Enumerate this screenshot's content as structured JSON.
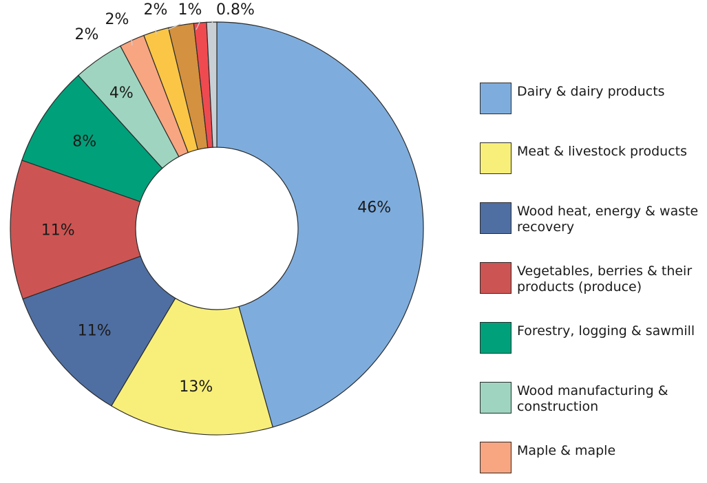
{
  "chart_data": {
    "type": "pie",
    "title": "",
    "slices": [
      {
        "name": "Dairy & dairy products",
        "value": 46,
        "label": "46%",
        "color": "#7eaddd"
      },
      {
        "name": "Meat & livestock products",
        "value": 13,
        "label": "13%",
        "color": "#f8ef7a"
      },
      {
        "name": "Wood heat, energy & waste recovery",
        "value": 11,
        "label": "11%",
        "color": "#4f6fa3"
      },
      {
        "name": "Vegetables, berries & their products (produce)",
        "value": 11,
        "label": "11%",
        "color": "#cc5553"
      },
      {
        "name": "Forestry, logging & sawmill",
        "value": 8,
        "label": "8%",
        "color": "#00a07a"
      },
      {
        "name": "Wood manufacturing & construction",
        "value": 4,
        "label": "4%",
        "color": "#9fd5c0"
      },
      {
        "name": "Maple & maple",
        "value": 2,
        "label": "2%",
        "color": "#f7a681"
      },
      {
        "name": "",
        "value": 2,
        "label": "2%",
        "color": "#fbc646"
      },
      {
        "name": "",
        "value": 2,
        "label": "2%",
        "color": "#d4913f"
      },
      {
        "name": "",
        "value": 1,
        "label": "1%",
        "color": "#ef4a50"
      },
      {
        "name": "",
        "value": 0.8,
        "label": "0.8%",
        "color": "#c8d0d6"
      }
    ],
    "legend_position": "right"
  }
}
